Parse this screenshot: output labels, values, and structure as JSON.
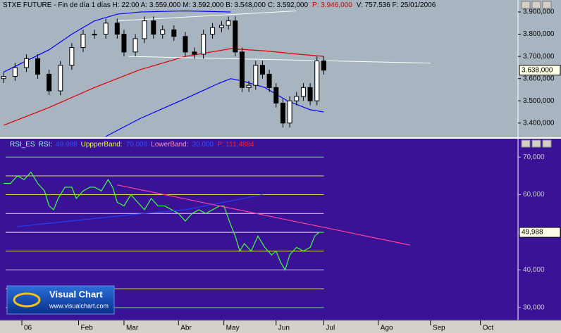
{
  "chart_data": [
    {
      "type": "candlestick",
      "info": [
        {
          "text": "STXE FUTURE - Fin de día 1 días H: 22:00  A: 3.559,000  M: 3.592,000  B: 3.548,000  C: 3.592,000",
          "color": "#000000"
        },
        {
          "text": "P: 3.946,000",
          "color": "#d00000"
        },
        {
          "text": "V: 757.536  F: 25/01/2006",
          "color": "#000000"
        }
      ],
      "x": [
        0,
        5,
        10,
        15,
        20,
        25,
        30,
        35,
        40,
        45,
        50,
        53,
        58,
        62,
        66,
        70,
        75,
        80,
        84,
        88,
        92,
        96,
        99,
        102,
        105,
        108,
        111,
        114,
        117,
        120,
        123,
        126,
        129,
        132,
        135,
        138,
        141
      ],
      "open": [
        3600,
        3610,
        3650,
        3690,
        3620,
        3545,
        3660,
        3740,
        3800,
        3800,
        3850,
        3800,
        3720,
        3780,
        3860,
        3800,
        3820,
        3790,
        3720,
        3710,
        3800,
        3830,
        3840,
        3860,
        3720,
        3560,
        3570,
        3660,
        3620,
        3560,
        3490,
        3400,
        3500,
        3520,
        3560,
        3500,
        3680
      ],
      "high": [
        3630,
        3670,
        3710,
        3710,
        3640,
        3680,
        3760,
        3820,
        3820,
        3870,
        3870,
        3820,
        3800,
        3880,
        3880,
        3840,
        3840,
        3810,
        3740,
        3820,
        3850,
        3860,
        3880,
        3880,
        3740,
        3590,
        3680,
        3680,
        3640,
        3580,
        3510,
        3520,
        3540,
        3580,
        3580,
        3700,
        3700
      ],
      "low": [
        3580,
        3590,
        3630,
        3600,
        3525,
        3525,
        3640,
        3720,
        3780,
        3780,
        3780,
        3700,
        3700,
        3760,
        3780,
        3780,
        3770,
        3700,
        3690,
        3690,
        3780,
        3810,
        3820,
        3700,
        3540,
        3540,
        3550,
        3600,
        3540,
        3470,
        3380,
        3380,
        3480,
        3500,
        3480,
        3480,
        3618
      ],
      "close": [
        3610,
        3650,
        3690,
        3620,
        3545,
        3660,
        3740,
        3800,
        3800,
        3850,
        3800,
        3720,
        3780,
        3860,
        3800,
        3820,
        3790,
        3720,
        3710,
        3800,
        3830,
        3840,
        3860,
        3720,
        3560,
        3570,
        3660,
        3620,
        3560,
        3490,
        3400,
        3500,
        3520,
        3560,
        3500,
        3680,
        3638
      ],
      "up_color": "#ffffff",
      "down_color": "#000000",
      "lines": [
        {
          "color": "#e00000",
          "x": [
            0,
            20,
            40,
            60,
            80,
            100,
            115,
            130,
            141
          ],
          "values": [
            3390,
            3470,
            3560,
            3640,
            3700,
            3735,
            3725,
            3710,
            3700
          ]
        },
        {
          "color": "#0000ff",
          "x": [
            0,
            10,
            20,
            30,
            40,
            50,
            60,
            80,
            100
          ],
          "values": [
            3630,
            3680,
            3730,
            3800,
            3860,
            3890,
            3900,
            3905,
            3900
          ]
        },
        {
          "color": "#0000ff",
          "x": [
            45,
            60,
            80,
            95,
            100,
            105,
            115,
            125,
            135,
            141
          ],
          "values": [
            3340,
            3420,
            3510,
            3580,
            3600,
            3590,
            3560,
            3500,
            3460,
            3450
          ]
        }
      ],
      "trendlines": [
        {
          "color": "#ffffff",
          "x": [
            50,
            129
          ],
          "values": [
            3860,
            3905
          ]
        },
        {
          "color": "#ffffff",
          "x": [
            55,
            188
          ],
          "values": [
            3700,
            3670
          ]
        }
      ],
      "xlim": [
        -1,
        225
      ],
      "ylim": [
        3336,
        3916
      ],
      "yticks": [
        {
          "value": 3900,
          "label": "3.900,000"
        },
        {
          "value": 3800,
          "label": "3.800,000"
        },
        {
          "value": 3700,
          "label": "3.700,000"
        },
        {
          "value": 3600,
          "label": "3.600,000"
        },
        {
          "value": 3500,
          "label": "3.500,000"
        },
        {
          "value": 3400,
          "label": "3.400,000"
        }
      ],
      "last": {
        "value": 3638,
        "label": "3.638,000"
      }
    },
    {
      "type": "line",
      "legend": [
        {
          "text": "RSI_ES",
          "color": "#a0ffff"
        },
        {
          "text": "RSI:",
          "color": "#a0ffff"
        },
        {
          "text": "49,988",
          "color": "#3050ff"
        },
        {
          "text": "UppperBand:",
          "color": "#e0ff40"
        },
        {
          "text": "70,000",
          "color": "#3050ff"
        },
        {
          "text": "LowerBand:",
          "color": "#ff90c0"
        },
        {
          "text": "30,000",
          "color": "#3050ff"
        },
        {
          "text": "P: 111,4884",
          "color": "#ff2020"
        }
      ],
      "series": [
        {
          "color": "#40ff40",
          "x": [
            0,
            3,
            6,
            9,
            12,
            15,
            18,
            20,
            22,
            24,
            27,
            30,
            32,
            35,
            38,
            40,
            43,
            46,
            48,
            50,
            53,
            56,
            59,
            62,
            65,
            68,
            71,
            74,
            77,
            80,
            83,
            86,
            89,
            92,
            95,
            97,
            100,
            102,
            104,
            106,
            109,
            112,
            115,
            118,
            120,
            122,
            124,
            126,
            129,
            132,
            135,
            137,
            139,
            141
          ],
          "values": [
            63,
            63,
            65,
            64,
            66,
            63,
            61,
            57,
            56,
            59,
            62,
            62,
            59,
            61,
            62,
            62,
            61,
            64,
            62,
            58,
            57,
            60,
            58,
            56,
            59,
            57,
            57,
            56,
            55,
            53,
            55,
            56,
            55,
            56,
            57,
            57,
            52,
            49,
            45,
            47,
            45,
            49,
            46,
            44,
            45,
            42,
            40,
            44,
            46,
            45,
            46,
            49,
            50,
            50
          ]
        },
        {
          "color": "#2040ff",
          "x": [
            6,
            53,
            80,
            114
          ],
          "values": [
            51.5,
            54.5,
            56,
            60
          ]
        },
        {
          "color": "#ff40a0",
          "x": [
            50,
            179
          ],
          "values": [
            62.6,
            46.6
          ]
        }
      ],
      "levels": [
        {
          "value": 70,
          "color": "#60e060"
        },
        {
          "value": 65,
          "color": "#e0e040"
        },
        {
          "value": 60,
          "color": "#e0e040"
        },
        {
          "value": 55,
          "color": "#ffd0e0"
        },
        {
          "value": 50,
          "color": "#ffffff"
        },
        {
          "value": 45,
          "color": "#e0e040"
        },
        {
          "value": 40,
          "color": "#d0d0ff"
        },
        {
          "value": 35,
          "color": "#e0e040"
        },
        {
          "value": 30,
          "color": "#60e060"
        }
      ],
      "xlim": [
        -1,
        225
      ],
      "ylim": [
        26.6,
        74.7
      ],
      "yticks": [
        {
          "value": 70,
          "label": "70,000"
        },
        {
          "value": 60,
          "label": "60,000"
        },
        {
          "value": 50,
          "label": "50,000"
        },
        {
          "value": 40,
          "label": "40,000"
        },
        {
          "value": 30,
          "label": "30,000"
        }
      ],
      "last": {
        "value": 49.988,
        "label": "49,988"
      },
      "xticks": [
        {
          "value": 8,
          "label": "06"
        },
        {
          "value": 33,
          "label": "Feb"
        },
        {
          "value": 53,
          "label": "Mar"
        },
        {
          "value": 77,
          "label": "Abr"
        },
        {
          "value": 97,
          "label": "May"
        },
        {
          "value": 120,
          "label": "Jun"
        },
        {
          "value": 141,
          "label": "Jul"
        },
        {
          "value": 165,
          "label": "Ago"
        },
        {
          "value": 188,
          "label": "Sep"
        },
        {
          "value": 210,
          "label": "Oct"
        }
      ]
    }
  ],
  "logo": {
    "title": "Visual Chart",
    "url": "www.visualchart.com"
  }
}
